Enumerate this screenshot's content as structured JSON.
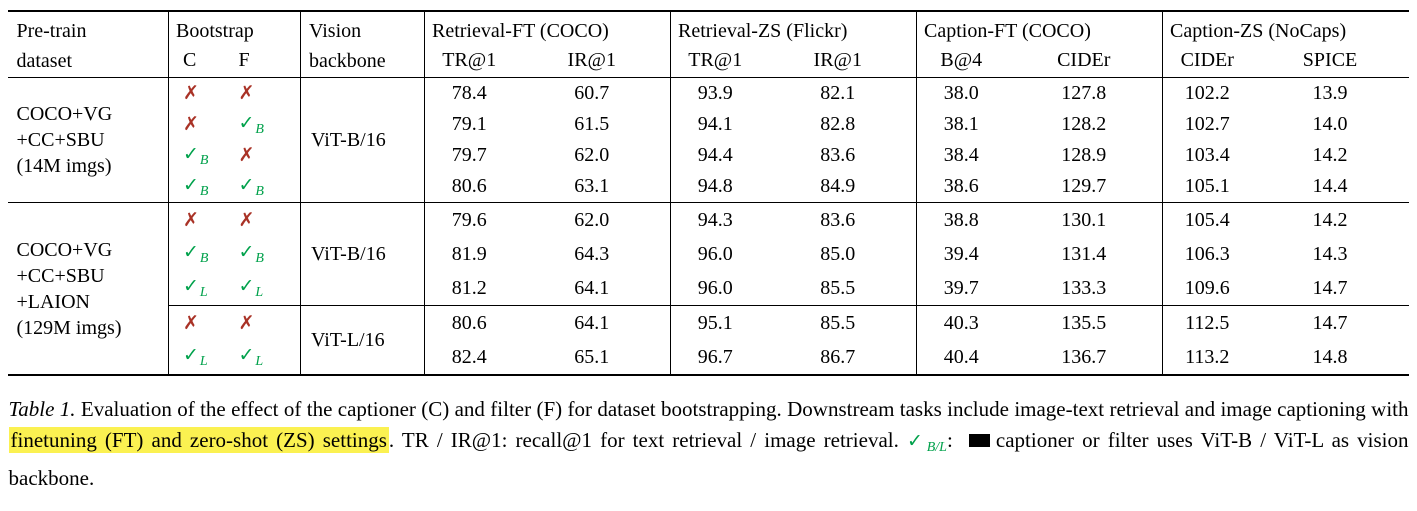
{
  "colors": {
    "check_green": "#00A14B",
    "cross_red": "#A93226",
    "highlight_yellow": "#FBF151"
  },
  "marks": {
    "check_glyph": "✓",
    "cross_glyph": "✗"
  },
  "header": {
    "dataset": "Pre-train\ndataset",
    "bootstrap": "Bootstrap",
    "c": "C",
    "f": "F",
    "backbone": "Vision\nbackbone",
    "groups": [
      {
        "title": "Retrieval-FT (COCO)",
        "sub": [
          "TR@1",
          "IR@1"
        ]
      },
      {
        "title": "Retrieval-ZS (Flickr)",
        "sub": [
          "TR@1",
          "IR@1"
        ]
      },
      {
        "title": "Caption-FT (COCO)",
        "sub": [
          "B@4",
          "CIDEr"
        ]
      },
      {
        "title": "Caption-ZS (NoCaps)",
        "sub": [
          "CIDEr",
          "SPICE"
        ]
      }
    ]
  },
  "body": {
    "groups": [
      {
        "dataset": "COCO+VG\n+CC+SBU\n(14M imgs)",
        "blocks": [
          {
            "backbone": "ViT-B/16",
            "rows": [
              {
                "c": {
                  "type": "cross"
                },
                "f": {
                  "type": "cross"
                },
                "v": [
                  "78.4",
                  "60.7",
                  "93.9",
                  "82.1",
                  "38.0",
                  "127.8",
                  "102.2",
                  "13.9"
                ]
              },
              {
                "c": {
                  "type": "cross"
                },
                "f": {
                  "type": "check",
                  "sub": "B"
                },
                "v": [
                  "79.1",
                  "61.5",
                  "94.1",
                  "82.8",
                  "38.1",
                  "128.2",
                  "102.7",
                  "14.0"
                ]
              },
              {
                "c": {
                  "type": "check",
                  "sub": "B"
                },
                "f": {
                  "type": "cross"
                },
                "v": [
                  "79.7",
                  "62.0",
                  "94.4",
                  "83.6",
                  "38.4",
                  "128.9",
                  "103.4",
                  "14.2"
                ]
              },
              {
                "c": {
                  "type": "check",
                  "sub": "B"
                },
                "f": {
                  "type": "check",
                  "sub": "B"
                },
                "v": [
                  "80.6",
                  "63.1",
                  "94.8",
                  "84.9",
                  "38.6",
                  "129.7",
                  "105.1",
                  "14.4"
                ]
              }
            ]
          }
        ]
      },
      {
        "dataset": "COCO+VG\n+CC+SBU\n+LAION\n(129M imgs)",
        "blocks": [
          {
            "backbone": "ViT-B/16",
            "rows": [
              {
                "c": {
                  "type": "cross"
                },
                "f": {
                  "type": "cross"
                },
                "v": [
                  "79.6",
                  "62.0",
                  "94.3",
                  "83.6",
                  "38.8",
                  "130.1",
                  "105.4",
                  "14.2"
                ]
              },
              {
                "c": {
                  "type": "check",
                  "sub": "B"
                },
                "f": {
                  "type": "check",
                  "sub": "B"
                },
                "v": [
                  "81.9",
                  "64.3",
                  "96.0",
                  "85.0",
                  "39.4",
                  "131.4",
                  "106.3",
                  "14.3"
                ]
              },
              {
                "c": {
                  "type": "check",
                  "sub": "L"
                },
                "f": {
                  "type": "check",
                  "sub": "L"
                },
                "v": [
                  "81.2",
                  "64.1",
                  "96.0",
                  "85.5",
                  "39.7",
                  "133.3",
                  "109.6",
                  "14.7"
                ]
              }
            ]
          },
          {
            "backbone": "ViT-L/16",
            "rows": [
              {
                "c": {
                  "type": "cross"
                },
                "f": {
                  "type": "cross"
                },
                "v": [
                  "80.6",
                  "64.1",
                  "95.1",
                  "85.5",
                  "40.3",
                  "135.5",
                  "112.5",
                  "14.7"
                ]
              },
              {
                "c": {
                  "type": "check",
                  "sub": "L"
                },
                "f": {
                  "type": "check",
                  "sub": "L"
                },
                "v": [
                  "82.4",
                  "65.1",
                  "96.7",
                  "86.7",
                  "40.4",
                  "136.7",
                  "113.2",
                  "14.8"
                ]
              }
            ]
          }
        ]
      }
    ]
  },
  "caption": {
    "label": "Table 1.",
    "before_highlight": " Evaluation of the effect of the captioner (C) and filter (F) for dataset bootstrapping. Downstream tasks include image-text retrieval and image captioning with ",
    "highlight": "finetuning (FT) and zero-shot (ZS) settings",
    "after_highlight": ". TR / IR@1: recall@1 for text retrieval / image retrieval. ",
    "check_sub": "B/L",
    "check_colon": ": ",
    "tail": "captioner or filter uses ViT-B / ViT-L as vision backbone."
  }
}
